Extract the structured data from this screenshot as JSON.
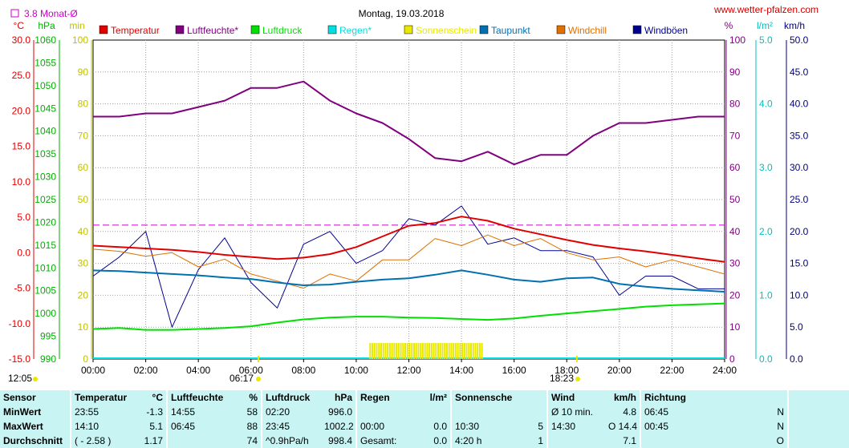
{
  "chart_data": {
    "type": "line",
    "title": "Montag, 19.03.2018",
    "watermark": "www.wetter-pfalzen.com",
    "rain_legend_label": "3.8 Monat-Ø",
    "x_ticks": [
      "00:00",
      "02:00",
      "04:00",
      "06:00",
      "08:00",
      "10:00",
      "12:00",
      "14:00",
      "16:00",
      "18:00",
      "20:00",
      "22:00",
      "24:00"
    ],
    "sunrise": "06:17",
    "sunset": "18:23",
    "left_corner_time": "12:05",
    "axes": {
      "temp": {
        "unit": "°C",
        "range": [
          -15,
          30
        ],
        "ticks": [
          "30.0",
          "25.0",
          "20.0",
          "15.0",
          "10.0",
          "5.0",
          "0.0",
          "-5.0",
          "-10.0",
          "-15.0"
        ]
      },
      "pressure": {
        "unit": "hPa",
        "range": [
          990,
          1060
        ],
        "ticks": [
          "1060",
          "1055",
          "1050",
          "1045",
          "1040",
          "1035",
          "1030",
          "1025",
          "1020",
          "1015",
          "1010",
          "1005",
          "1000",
          "995",
          "990"
        ]
      },
      "minutes": {
        "unit": "min",
        "range": [
          0,
          100
        ],
        "ticks": [
          "100",
          "90",
          "80",
          "70",
          "60",
          "50",
          "40",
          "30",
          "20",
          "10",
          "0"
        ]
      },
      "humidity": {
        "unit": "%",
        "range": [
          0,
          100
        ],
        "ticks": [
          "100",
          "90",
          "80",
          "70",
          "60",
          "50",
          "40",
          "30",
          "20",
          "10",
          "0"
        ]
      },
      "rain": {
        "unit": "l/m²",
        "range": [
          0,
          5
        ],
        "ticks": [
          "5.0",
          "4.0",
          "3.0",
          "2.0",
          "1.0",
          "0.0"
        ]
      },
      "wind": {
        "unit": "km/h",
        "range": [
          0,
          50
        ],
        "ticks": [
          "50.0",
          "45.0",
          "40.0",
          "35.0",
          "30.0",
          "25.0",
          "20.0",
          "15.0",
          "10.0",
          "5.0",
          "0.0"
        ]
      }
    },
    "legend": [
      {
        "name": "Temperatur",
        "color": "#e00000"
      },
      {
        "name": "Luftfeuchte*",
        "color": "#800080"
      },
      {
        "name": "Luftdruck",
        "color": "#00e000"
      },
      {
        "name": "Regen*",
        "color": "#00e0e0"
      },
      {
        "name": "Sonnenschein",
        "color": "#e8e800"
      },
      {
        "name": "Taupunkt",
        "color": "#0070b0"
      },
      {
        "name": "Windchill",
        "color": "#e07000"
      },
      {
        "name": "Windböen",
        "color": "#000090"
      }
    ],
    "x_hours": [
      0,
      1,
      2,
      3,
      4,
      5,
      6,
      7,
      8,
      9,
      10,
      11,
      12,
      13,
      14,
      15,
      16,
      17,
      18,
      19,
      20,
      21,
      22,
      23,
      24
    ],
    "series": [
      {
        "key": "temperature",
        "axis": "temp",
        "color": "#e00000",
        "width": 2,
        "values": [
          1.0,
          0.8,
          0.6,
          0.4,
          0.1,
          -0.3,
          -0.6,
          -0.9,
          -0.7,
          -0.2,
          0.8,
          2.3,
          3.8,
          4.2,
          5.1,
          4.5,
          3.4,
          2.6,
          1.8,
          1.1,
          0.6,
          0.2,
          -0.3,
          -0.8,
          -1.3
        ]
      },
      {
        "key": "dewpoint",
        "axis": "temp",
        "color": "#0070b0",
        "width": 2,
        "values": [
          -2.5,
          -2.6,
          -2.8,
          -3.0,
          -3.2,
          -3.5,
          -3.7,
          -4.2,
          -4.6,
          -4.5,
          -4.1,
          -3.8,
          -3.6,
          -3.1,
          -2.5,
          -3.1,
          -3.8,
          -4.1,
          -3.6,
          -3.5,
          -4.4,
          -4.8,
          -5.1,
          -5.3,
          -5.5
        ]
      },
      {
        "key": "windchill",
        "axis": "temp",
        "color": "#e07000",
        "width": 1,
        "values": [
          0.5,
          0.2,
          -0.5,
          0.0,
          -2.0,
          -0.9,
          -3.0,
          -4.0,
          -5.0,
          -3.0,
          -4.0,
          -1.0,
          -1.0,
          2.0,
          1.0,
          2.5,
          1.0,
          2.0,
          0.0,
          -1.0,
          -0.6,
          -2.0,
          -1.0,
          -2.0,
          -3.0
        ]
      },
      {
        "key": "humidity",
        "axis": "humidity",
        "color": "#800080",
        "width": 2,
        "values": [
          76,
          76,
          77,
          77,
          79,
          81,
          85,
          85,
          87,
          81,
          77,
          74,
          69,
          63,
          62,
          65,
          61,
          64,
          64,
          70,
          74,
          74,
          75,
          76,
          76
        ]
      },
      {
        "key": "pressure",
        "axis": "pressure",
        "color": "#00e000",
        "width": 2,
        "values": [
          996.6,
          996.8,
          996.4,
          996.4,
          996.6,
          996.8,
          997.2,
          998.0,
          998.7,
          999.1,
          999.3,
          999.3,
          999.1,
          999.0,
          998.8,
          998.6,
          998.9,
          999.5,
          1000.0,
          1000.5,
          1001.0,
          1001.5,
          1001.8,
          1002.0,
          1002.2
        ]
      },
      {
        "key": "gusts",
        "axis": "wind",
        "color": "#000090",
        "width": 1,
        "values": [
          13,
          16,
          20,
          5,
          14,
          19,
          12,
          8,
          18,
          20,
          15,
          17,
          22,
          21,
          24,
          18,
          19,
          17,
          17,
          16,
          10,
          13,
          13,
          11,
          11
        ]
      }
    ],
    "wind_max": 14.4,
    "sunshine_window": [
      "10:30",
      "14:50"
    ],
    "rain_ref_line": 2.1,
    "table": {
      "headers": [
        {
          "label": "Sensor"
        },
        {
          "label": "Temperatur",
          "unit": "°C"
        },
        {
          "label": "Luftfeuchte",
          "unit": "%"
        },
        {
          "label": "Luftdruck",
          "unit": "hPa"
        },
        {
          "label": "Regen",
          "unit": "l/m²"
        },
        {
          "label": "Sonnenschein min"
        },
        {
          "label": "Wind",
          "unit": "km/h"
        },
        {
          "label": "Richtung"
        }
      ],
      "rows": [
        {
          "label": "MinWert",
          "cells": [
            "23:55",
            "-1.3",
            "14:55",
            "58",
            "02:20",
            "996.0",
            "",
            "",
            "",
            "",
            "Ø 10 min.",
            "4.8",
            "06:45",
            "N"
          ]
        },
        {
          "label": "MaxWert",
          "cells": [
            "14:10",
            "5.1",
            "06:45",
            "88",
            "23:45",
            "1002.2",
            "00:00",
            "0.0",
            "10:30",
            "5",
            "14:30",
            "O 14.4",
            "00:45",
            "N"
          ]
        },
        {
          "label": "Durchschnitt",
          "cells": [
            "( - 2.58 )",
            "1.17",
            "",
            "74",
            "^0.9hPa/h",
            "998.4",
            "Gesamt:",
            "0.0",
            "4:20 h",
            "1",
            "",
            "7.1",
            "",
            "O"
          ]
        }
      ]
    }
  }
}
